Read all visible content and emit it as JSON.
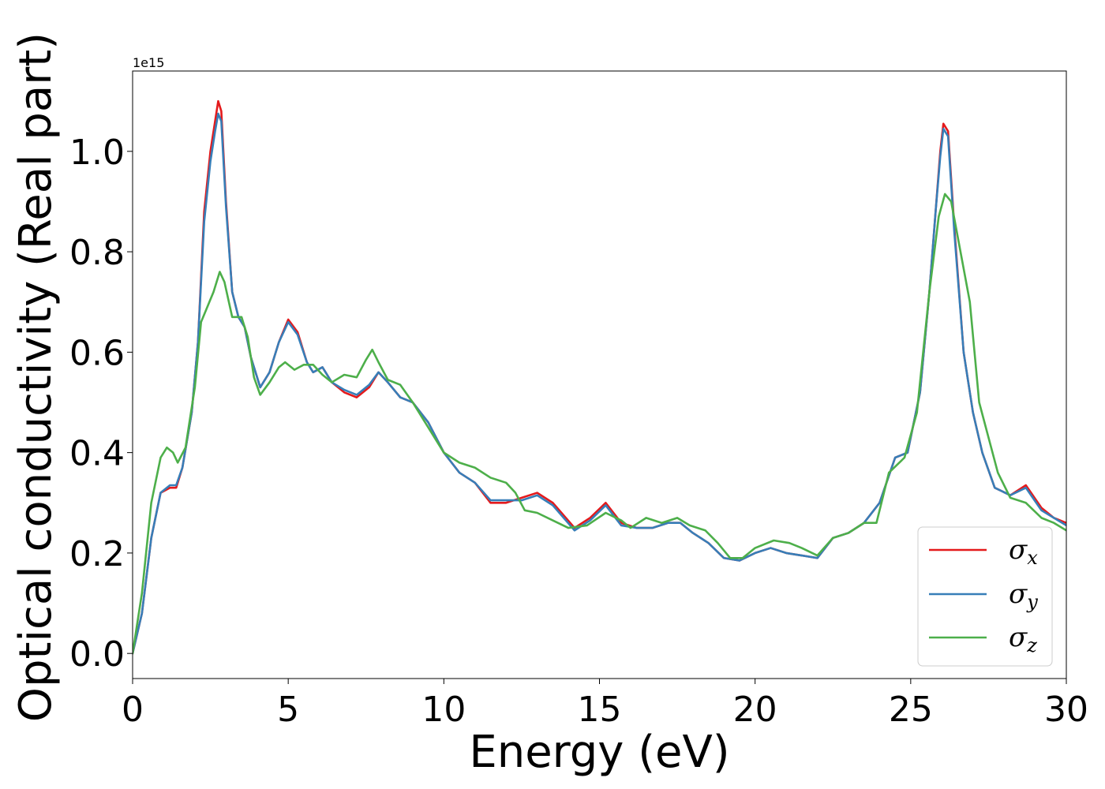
{
  "chart_data": {
    "type": "line",
    "xlabel": "Energy (eV)",
    "ylabel": "Optical conductivity (Real part)",
    "y_offset_label": "1e15",
    "xlim": [
      0,
      30
    ],
    "ylim": [
      -0.05,
      1.16
    ],
    "x_ticks": [
      0,
      5,
      10,
      15,
      20,
      25,
      30
    ],
    "x_tick_labels": [
      "0",
      "5",
      "10",
      "15",
      "20",
      "25",
      "30"
    ],
    "y_ticks": [
      0.0,
      0.2,
      0.4,
      0.6,
      0.8,
      1.0
    ],
    "y_tick_labels": [
      "0.0",
      "0.2",
      "0.4",
      "0.6",
      "0.8",
      "1.0"
    ],
    "grid": false,
    "legend_position": "lower-right",
    "series": [
      {
        "name": "σx",
        "symbol": "σ",
        "subscript": "x",
        "color": "#e41a1c",
        "points": [
          [
            0,
            0
          ],
          [
            0.3,
            0.08
          ],
          [
            0.6,
            0.23
          ],
          [
            0.9,
            0.32
          ],
          [
            1.2,
            0.33
          ],
          [
            1.4,
            0.33
          ],
          [
            1.6,
            0.37
          ],
          [
            1.9,
            0.48
          ],
          [
            2.1,
            0.62
          ],
          [
            2.3,
            0.88
          ],
          [
            2.5,
            1.0
          ],
          [
            2.65,
            1.06
          ],
          [
            2.75,
            1.1
          ],
          [
            2.85,
            1.08
          ],
          [
            3.0,
            0.9
          ],
          [
            3.2,
            0.72
          ],
          [
            3.4,
            0.67
          ],
          [
            3.6,
            0.65
          ],
          [
            3.8,
            0.59
          ],
          [
            4.1,
            0.53
          ],
          [
            4.4,
            0.56
          ],
          [
            4.7,
            0.62
          ],
          [
            5.0,
            0.665
          ],
          [
            5.3,
            0.64
          ],
          [
            5.6,
            0.58
          ],
          [
            5.8,
            0.56
          ],
          [
            6.1,
            0.57
          ],
          [
            6.4,
            0.54
          ],
          [
            6.8,
            0.52
          ],
          [
            7.2,
            0.51
          ],
          [
            7.6,
            0.53
          ],
          [
            7.9,
            0.56
          ],
          [
            8.2,
            0.54
          ],
          [
            8.6,
            0.51
          ],
          [
            9.0,
            0.5
          ],
          [
            9.5,
            0.46
          ],
          [
            10.0,
            0.4
          ],
          [
            10.5,
            0.36
          ],
          [
            11.0,
            0.34
          ],
          [
            11.5,
            0.3
          ],
          [
            12.0,
            0.3
          ],
          [
            12.5,
            0.31
          ],
          [
            13.0,
            0.32
          ],
          [
            13.5,
            0.3
          ],
          [
            14.2,
            0.25
          ],
          [
            14.7,
            0.27
          ],
          [
            15.2,
            0.3
          ],
          [
            15.7,
            0.26
          ],
          [
            16.2,
            0.25
          ],
          [
            16.7,
            0.25
          ],
          [
            17.2,
            0.26
          ],
          [
            17.6,
            0.26
          ],
          [
            18.0,
            0.24
          ],
          [
            18.5,
            0.22
          ],
          [
            19.0,
            0.19
          ],
          [
            19.5,
            0.185
          ],
          [
            20.0,
            0.2
          ],
          [
            20.5,
            0.21
          ],
          [
            21.0,
            0.2
          ],
          [
            21.5,
            0.195
          ],
          [
            22.0,
            0.19
          ],
          [
            22.5,
            0.23
          ],
          [
            23.0,
            0.24
          ],
          [
            23.5,
            0.26
          ],
          [
            24.0,
            0.3
          ],
          [
            24.5,
            0.39
          ],
          [
            24.9,
            0.4
          ],
          [
            25.3,
            0.52
          ],
          [
            25.6,
            0.72
          ],
          [
            25.8,
            0.88
          ],
          [
            25.95,
            1.0
          ],
          [
            26.05,
            1.055
          ],
          [
            26.2,
            1.04
          ],
          [
            26.4,
            0.85
          ],
          [
            26.7,
            0.6
          ],
          [
            27.0,
            0.48
          ],
          [
            27.3,
            0.4
          ],
          [
            27.7,
            0.33
          ],
          [
            28.2,
            0.315
          ],
          [
            28.7,
            0.335
          ],
          [
            29.2,
            0.29
          ],
          [
            29.6,
            0.27
          ],
          [
            30.0,
            0.26
          ]
        ]
      },
      {
        "name": "σy",
        "symbol": "σ",
        "subscript": "y",
        "color": "#377eb8",
        "points": [
          [
            0,
            0
          ],
          [
            0.3,
            0.08
          ],
          [
            0.6,
            0.23
          ],
          [
            0.9,
            0.32
          ],
          [
            1.2,
            0.335
          ],
          [
            1.4,
            0.335
          ],
          [
            1.6,
            0.37
          ],
          [
            1.9,
            0.48
          ],
          [
            2.1,
            0.62
          ],
          [
            2.3,
            0.86
          ],
          [
            2.5,
            0.98
          ],
          [
            2.65,
            1.04
          ],
          [
            2.75,
            1.075
          ],
          [
            2.85,
            1.06
          ],
          [
            3.0,
            0.89
          ],
          [
            3.2,
            0.72
          ],
          [
            3.4,
            0.67
          ],
          [
            3.6,
            0.65
          ],
          [
            3.8,
            0.59
          ],
          [
            4.1,
            0.53
          ],
          [
            4.4,
            0.56
          ],
          [
            4.7,
            0.62
          ],
          [
            5.0,
            0.66
          ],
          [
            5.3,
            0.635
          ],
          [
            5.6,
            0.58
          ],
          [
            5.8,
            0.56
          ],
          [
            6.1,
            0.57
          ],
          [
            6.4,
            0.54
          ],
          [
            6.8,
            0.525
          ],
          [
            7.2,
            0.515
          ],
          [
            7.6,
            0.535
          ],
          [
            7.9,
            0.56
          ],
          [
            8.2,
            0.54
          ],
          [
            8.6,
            0.51
          ],
          [
            9.0,
            0.5
          ],
          [
            9.5,
            0.46
          ],
          [
            10.0,
            0.4
          ],
          [
            10.5,
            0.36
          ],
          [
            11.0,
            0.34
          ],
          [
            11.5,
            0.305
          ],
          [
            12.0,
            0.305
          ],
          [
            12.5,
            0.305
          ],
          [
            13.0,
            0.315
          ],
          [
            13.5,
            0.295
          ],
          [
            14.2,
            0.245
          ],
          [
            14.7,
            0.265
          ],
          [
            15.2,
            0.295
          ],
          [
            15.7,
            0.255
          ],
          [
            16.2,
            0.25
          ],
          [
            16.7,
            0.25
          ],
          [
            17.2,
            0.26
          ],
          [
            17.6,
            0.26
          ],
          [
            18.0,
            0.24
          ],
          [
            18.5,
            0.22
          ],
          [
            19.0,
            0.19
          ],
          [
            19.5,
            0.185
          ],
          [
            20.0,
            0.2
          ],
          [
            20.5,
            0.21
          ],
          [
            21.0,
            0.2
          ],
          [
            21.5,
            0.195
          ],
          [
            22.0,
            0.19
          ],
          [
            22.5,
            0.23
          ],
          [
            23.0,
            0.24
          ],
          [
            23.5,
            0.26
          ],
          [
            24.0,
            0.3
          ],
          [
            24.5,
            0.39
          ],
          [
            24.9,
            0.4
          ],
          [
            25.3,
            0.52
          ],
          [
            25.6,
            0.72
          ],
          [
            25.8,
            0.88
          ],
          [
            25.95,
            0.99
          ],
          [
            26.05,
            1.045
          ],
          [
            26.2,
            1.03
          ],
          [
            26.4,
            0.84
          ],
          [
            26.7,
            0.6
          ],
          [
            27.0,
            0.48
          ],
          [
            27.3,
            0.4
          ],
          [
            27.7,
            0.33
          ],
          [
            28.2,
            0.315
          ],
          [
            28.7,
            0.33
          ],
          [
            29.2,
            0.285
          ],
          [
            29.6,
            0.27
          ],
          [
            30.0,
            0.255
          ]
        ]
      },
      {
        "name": "σz",
        "symbol": "σ",
        "subscript": "z",
        "color": "#4daf4a",
        "points": [
          [
            0,
            0
          ],
          [
            0.3,
            0.12
          ],
          [
            0.6,
            0.3
          ],
          [
            0.9,
            0.39
          ],
          [
            1.1,
            0.41
          ],
          [
            1.3,
            0.4
          ],
          [
            1.45,
            0.38
          ],
          [
            1.7,
            0.41
          ],
          [
            2.0,
            0.53
          ],
          [
            2.2,
            0.66
          ],
          [
            2.4,
            0.69
          ],
          [
            2.6,
            0.72
          ],
          [
            2.8,
            0.76
          ],
          [
            2.95,
            0.74
          ],
          [
            3.2,
            0.67
          ],
          [
            3.5,
            0.67
          ],
          [
            3.7,
            0.63
          ],
          [
            3.9,
            0.55
          ],
          [
            4.1,
            0.515
          ],
          [
            4.4,
            0.54
          ],
          [
            4.7,
            0.57
          ],
          [
            4.9,
            0.58
          ],
          [
            5.2,
            0.565
          ],
          [
            5.5,
            0.575
          ],
          [
            5.8,
            0.575
          ],
          [
            6.1,
            0.555
          ],
          [
            6.4,
            0.54
          ],
          [
            6.8,
            0.555
          ],
          [
            7.2,
            0.55
          ],
          [
            7.5,
            0.585
          ],
          [
            7.7,
            0.605
          ],
          [
            7.9,
            0.58
          ],
          [
            8.2,
            0.545
          ],
          [
            8.6,
            0.535
          ],
          [
            9.0,
            0.5
          ],
          [
            9.5,
            0.45
          ],
          [
            10.0,
            0.4
          ],
          [
            10.5,
            0.38
          ],
          [
            11.0,
            0.37
          ],
          [
            11.5,
            0.35
          ],
          [
            12.0,
            0.34
          ],
          [
            12.3,
            0.32
          ],
          [
            12.6,
            0.285
          ],
          [
            13.0,
            0.28
          ],
          [
            13.5,
            0.265
          ],
          [
            14.0,
            0.25
          ],
          [
            14.6,
            0.255
          ],
          [
            15.2,
            0.28
          ],
          [
            15.7,
            0.265
          ],
          [
            16.0,
            0.25
          ],
          [
            16.5,
            0.27
          ],
          [
            17.0,
            0.26
          ],
          [
            17.5,
            0.27
          ],
          [
            17.9,
            0.255
          ],
          [
            18.4,
            0.245
          ],
          [
            18.8,
            0.22
          ],
          [
            19.2,
            0.19
          ],
          [
            19.6,
            0.19
          ],
          [
            20.0,
            0.21
          ],
          [
            20.6,
            0.225
          ],
          [
            21.1,
            0.22
          ],
          [
            21.5,
            0.21
          ],
          [
            22.0,
            0.195
          ],
          [
            22.5,
            0.23
          ],
          [
            23.0,
            0.24
          ],
          [
            23.5,
            0.26
          ],
          [
            23.9,
            0.26
          ],
          [
            24.3,
            0.36
          ],
          [
            24.8,
            0.39
          ],
          [
            25.2,
            0.48
          ],
          [
            25.6,
            0.72
          ],
          [
            25.9,
            0.87
          ],
          [
            26.1,
            0.915
          ],
          [
            26.3,
            0.9
          ],
          [
            26.6,
            0.8
          ],
          [
            26.9,
            0.7
          ],
          [
            27.2,
            0.5
          ],
          [
            27.5,
            0.43
          ],
          [
            27.8,
            0.36
          ],
          [
            28.2,
            0.31
          ],
          [
            28.7,
            0.3
          ],
          [
            29.2,
            0.27
          ],
          [
            29.6,
            0.26
          ],
          [
            30.0,
            0.245
          ]
        ]
      }
    ]
  }
}
